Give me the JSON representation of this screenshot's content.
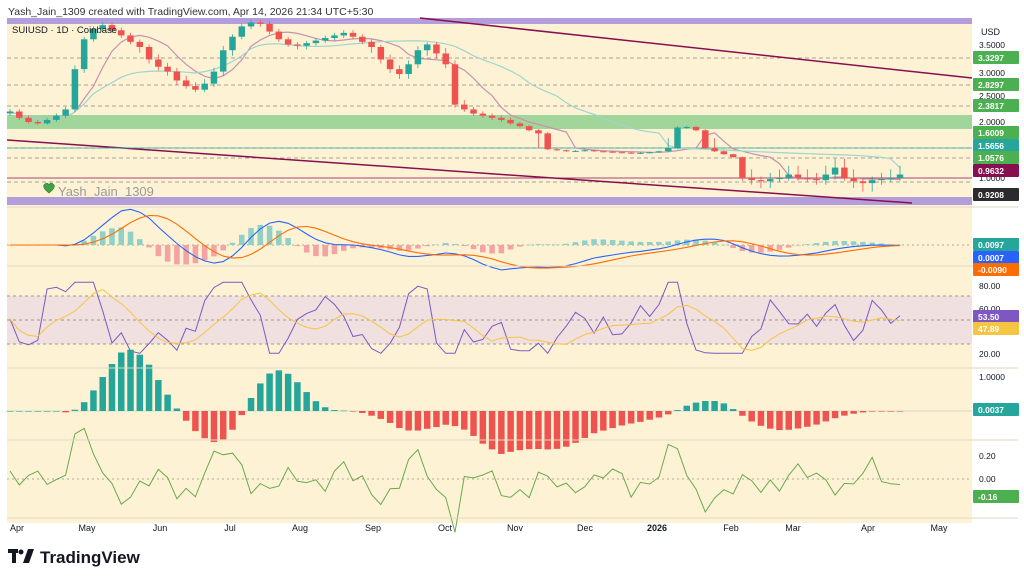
{
  "header": {
    "credit": "Yash_Jain_1309 created with TradingView.com, Apr 14, 2026 21:34 UTC+5:30"
  },
  "brand": {
    "logo_text": "TradingView"
  },
  "colors": {
    "background": "#fdf3d4",
    "candle_up": "#26a69a",
    "candle_down": "#ef5350",
    "zone_green": "#80cc80",
    "zone_purple": "#b39ddb",
    "trendline": "#880e4f",
    "ma_pink": "#c890b0",
    "ma_teal": "#9fd4cc",
    "macd_blue": "#2962ff",
    "macd_orange": "#ff6d00",
    "rsi_purple": "#7e57c2",
    "rsi_yellow": "#f5c542",
    "osc_green": "#6aa84f"
  },
  "chart_data": {
    "type": "candlestick",
    "symbol_label": "SUIUSD · 1D · Coinbase",
    "currency": "USD",
    "watermark": "Yash_Jain_1309",
    "x_ticks": [
      "Apr",
      "May",
      "Jun",
      "Jul",
      "Aug",
      "Sep",
      "Oct",
      "Nov",
      "Dec",
      "2026",
      "Feb",
      "Mar",
      "Apr",
      "May"
    ],
    "price_axis": {
      "ticks": [
        "3.5000",
        "3.0000",
        "2.5000",
        "2.0000",
        "1.0000"
      ],
      "price_range": [
        0.85,
        4.6
      ],
      "labels": [
        {
          "value": "3.3297",
          "color": "#4caf50"
        },
        {
          "value": "2.8297",
          "color": "#4caf50"
        },
        {
          "value": "2.3817",
          "color": "#4caf50"
        },
        {
          "value": "1.6009",
          "color": "#4caf50"
        },
        {
          "value": "1.5656",
          "color": "#26a69a"
        },
        {
          "value": "1.0576",
          "color": "#4caf50"
        },
        {
          "value": "0.9632",
          "color": "#880e4f"
        },
        {
          "value": "0.9208",
          "color": "#2b2b2b"
        }
      ],
      "horizontal_levels": [
        3.3297,
        2.8297,
        2.3817,
        1.5656,
        1.0576,
        0.9632
      ],
      "green_zone": [
        1.6009,
        1.95
      ],
      "purple_zone_top": 4.55,
      "purple_zone_bottom": 0.9208,
      "close_series": [
        2.25,
        2.1,
        2.0,
        1.95,
        2.05,
        2.15,
        2.3,
        3.1,
        3.8,
        4.2,
        4.35,
        4.15,
        3.95,
        3.7,
        3.5,
        3.3,
        3.15,
        3.05,
        2.9,
        2.8,
        2.7,
        2.85,
        3.05,
        3.45,
        3.9,
        4.3,
        4.45,
        4.4,
        4.1,
        3.8,
        3.6,
        3.55,
        3.65,
        3.75,
        3.85,
        3.95,
        4.05,
        3.9,
        3.7,
        3.5,
        3.3,
        3.1,
        3.0,
        3.2,
        3.45,
        3.6,
        3.4,
        3.2,
        2.4,
        2.3,
        2.2,
        2.15,
        2.1,
        2.05,
        1.95,
        1.85,
        1.7,
        1.6,
        1.5,
        1.45,
        1.4,
        1.42,
        1.45,
        1.4,
        1.38,
        1.35,
        1.33,
        1.3,
        1.32,
        1.35,
        1.4,
        1.55,
        1.8,
        1.82,
        1.7,
        1.55,
        1.4,
        1.25,
        1.1,
        1.0,
        0.98,
        0.97,
        0.99,
        1.0,
        1.01,
        1.0,
        0.99,
        0.98,
        1.01,
        1.03,
        1.0,
        0.97,
        0.96,
        0.98,
        0.99,
        1.0,
        1.01
      ]
    },
    "macd": {
      "labels": [
        {
          "value": "0.0097",
          "color": "#26a69a"
        },
        {
          "value": "0.0007",
          "color": "#2962ff"
        },
        {
          "value": "-0.0090",
          "color": "#ff6d00"
        }
      ]
    },
    "rsi": {
      "ticks": [
        "80.00",
        "60.00",
        "20.00"
      ],
      "labels": [
        {
          "value": "53.50",
          "color": "#7e57c2"
        },
        {
          "value": "47.89",
          "color": "#f5c542"
        }
      ],
      "band": [
        30,
        70
      ]
    },
    "histogram": {
      "ticks": [
        "1.0000"
      ],
      "labels": [
        {
          "value": "0.0037",
          "color": "#26a69a"
        }
      ]
    },
    "oscillator": {
      "ticks": [
        "0.20",
        "0.00",
        "-0.16"
      ],
      "labels": [
        {
          "value": "-0.16",
          "color": "#4caf50"
        }
      ]
    }
  }
}
